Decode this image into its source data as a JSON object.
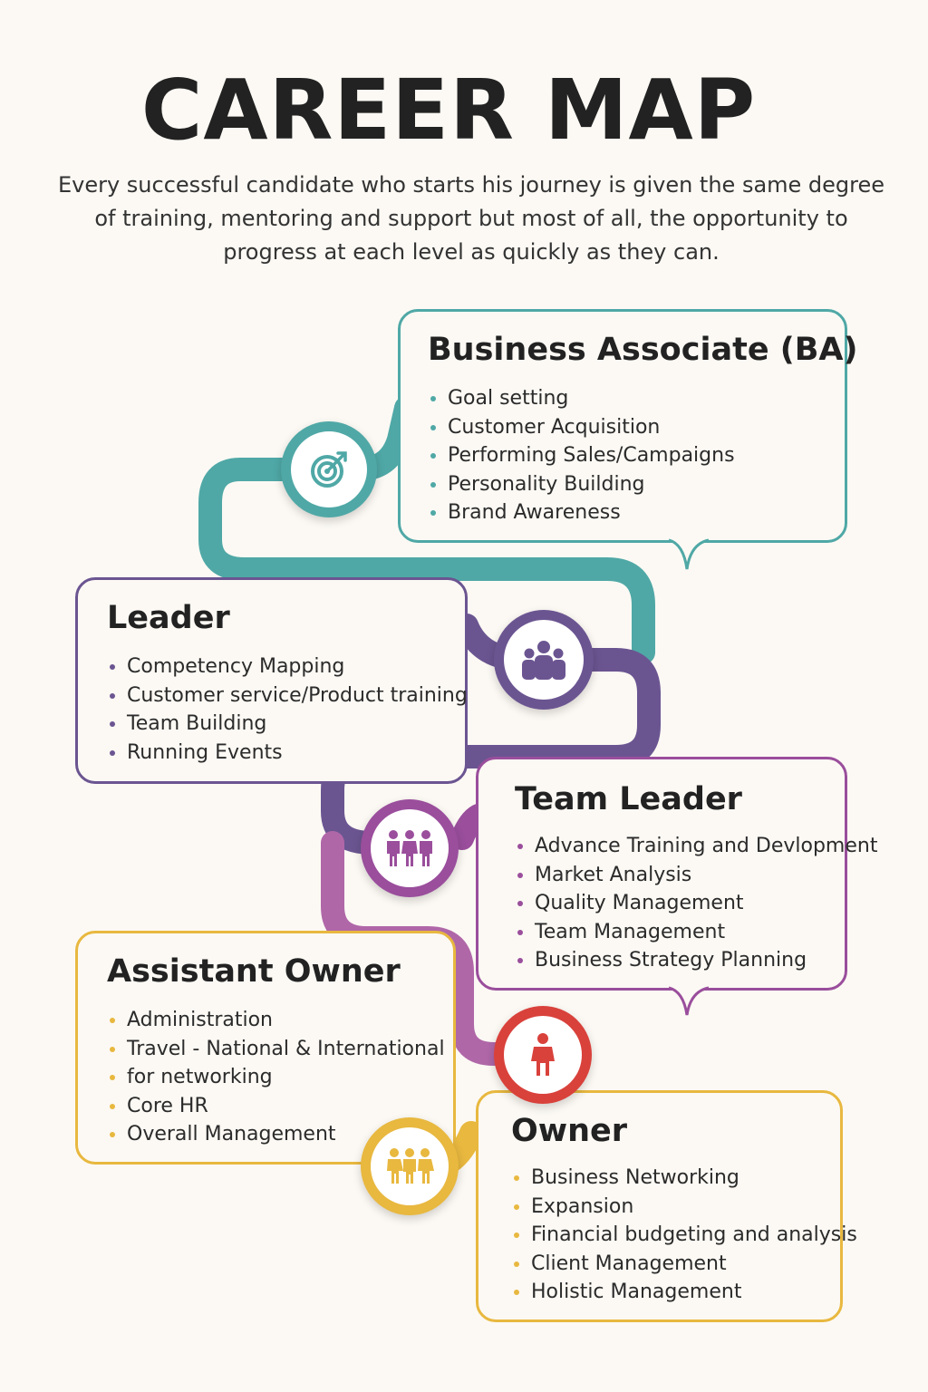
{
  "title": "CAREER MAP",
  "intro": [
    "Every successful candidate who starts his journey is given the same degree",
    "of training, mentoring and support but most of all, the opportunity to",
    "progress at each level as quickly as they can."
  ],
  "colors": {
    "ba": "#4fa8a6",
    "leader": "#6b5591",
    "team_leader": "#9a4e9c",
    "assistant_owner": "#e8b83f",
    "owner": "#d9413b"
  },
  "stages": {
    "ba": {
      "title": "Business Associate (BA)",
      "items": [
        "Goal setting",
        "Customer  Acquisition",
        "Performing Sales/Campaigns",
        "Personality Building",
        "Brand Awareness"
      ],
      "icon": "target-icon"
    },
    "leader": {
      "title": "Leader",
      "items": [
        "Competency Mapping",
        "Customer service/Product training",
        "Team Building",
        "Running Events"
      ],
      "icon": "group-icon"
    },
    "team_leader": {
      "title": "Team Leader",
      "items": [
        "Advance Training and Devlopment",
        "Market Analysis",
        "Quality Management",
        "Team Management",
        "Business Strategy Planning"
      ],
      "icon": "team-icon"
    },
    "assistant_owner": {
      "title": "Assistant Owner",
      "items": [
        "Administration",
        "Travel - National & International",
        "for networking",
        "Core HR",
        "Overall Management"
      ],
      "icon": "family-icon"
    },
    "owner": {
      "title": "Owner",
      "items": [
        "Business Networking",
        "Expansion",
        "Financial budgeting and analysis",
        "Client Management",
        "Holistic Management"
      ],
      "icon": "person-icon"
    }
  }
}
